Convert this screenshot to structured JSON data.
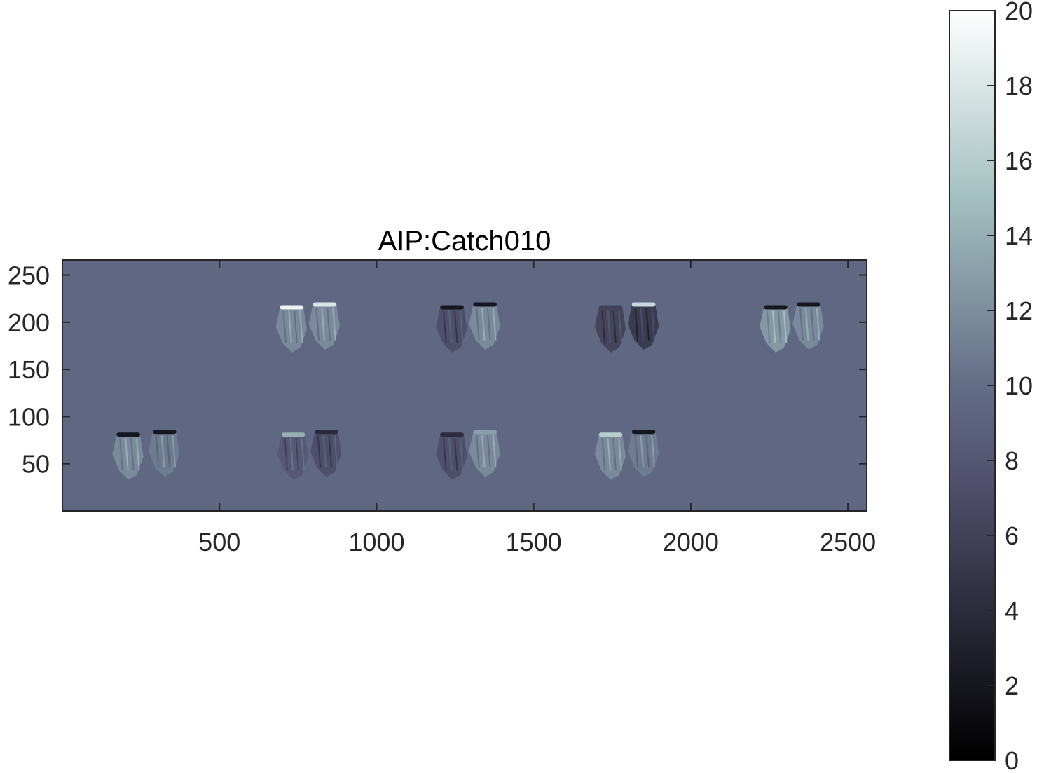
{
  "chart_data": [
    {
      "type": "heatmap",
      "title": "AIP:Catch010",
      "xlabel": "",
      "ylabel": "",
      "xlim": [
        0,
        2560
      ],
      "ylim": [
        0,
        266
      ],
      "y_direction": "normal",
      "x_ticks": [
        500,
        1000,
        1500,
        2000,
        2500
      ],
      "x_tick_labels": [
        "500",
        "1000",
        "1500",
        "2000",
        "2500"
      ],
      "y_ticks": [
        50,
        100,
        150,
        200,
        250
      ],
      "y_tick_labels": [
        "50",
        "100",
        "150",
        "200",
        "250"
      ],
      "grid": false,
      "background_value": 9.5,
      "colormap": "bone",
      "blobs": [
        {
          "row": "bottom",
          "x": 210,
          "y": 60,
          "value_top": 2,
          "value_body": 12
        },
        {
          "row": "bottom",
          "x": 325,
          "y": 63,
          "value_top": 2,
          "value_body": 11
        },
        {
          "row": "bottom",
          "x": 735,
          "y": 60,
          "value_top": 14,
          "value_body": 8
        },
        {
          "row": "bottom",
          "x": 840,
          "y": 63,
          "value_top": 4,
          "value_body": 7
        },
        {
          "row": "bottom",
          "x": 1240,
          "y": 60,
          "value_top": 4,
          "value_body": 7
        },
        {
          "row": "bottom",
          "x": 1345,
          "y": 63,
          "value_top": 13,
          "value_body": 12
        },
        {
          "row": "bottom",
          "x": 1745,
          "y": 60,
          "value_top": 16,
          "value_body": 12
        },
        {
          "row": "bottom",
          "x": 1850,
          "y": 63,
          "value_top": 2,
          "value_body": 11
        },
        {
          "row": "top",
          "x": 730,
          "y": 195,
          "value_top": 19,
          "value_body": 12
        },
        {
          "row": "top",
          "x": 835,
          "y": 198,
          "value_top": 18,
          "value_body": 12
        },
        {
          "row": "top",
          "x": 1240,
          "y": 195,
          "value_top": 2,
          "value_body": 7
        },
        {
          "row": "top",
          "x": 1345,
          "y": 198,
          "value_top": 2,
          "value_body": 12
        },
        {
          "row": "top",
          "x": 1745,
          "y": 195,
          "value_top": 6,
          "value_body": 6
        },
        {
          "row": "top",
          "x": 1850,
          "y": 198,
          "value_top": 17,
          "value_body": 5
        },
        {
          "row": "top",
          "x": 2270,
          "y": 195,
          "value_top": 2,
          "value_body": 13
        },
        {
          "row": "top",
          "x": 2375,
          "y": 198,
          "value_top": 2,
          "value_body": 12
        }
      ]
    },
    {
      "type": "colorbar",
      "clim": [
        0,
        20
      ],
      "ticks": [
        0,
        2,
        4,
        6,
        8,
        10,
        12,
        14,
        16,
        18,
        20
      ],
      "tick_labels": [
        "0",
        "2",
        "4",
        "6",
        "8",
        "10",
        "12",
        "14",
        "16",
        "18",
        "20"
      ],
      "colormap": "bone"
    }
  ],
  "colors": {
    "axis_line": "#262626",
    "text": "#262626",
    "title": "#000000"
  }
}
